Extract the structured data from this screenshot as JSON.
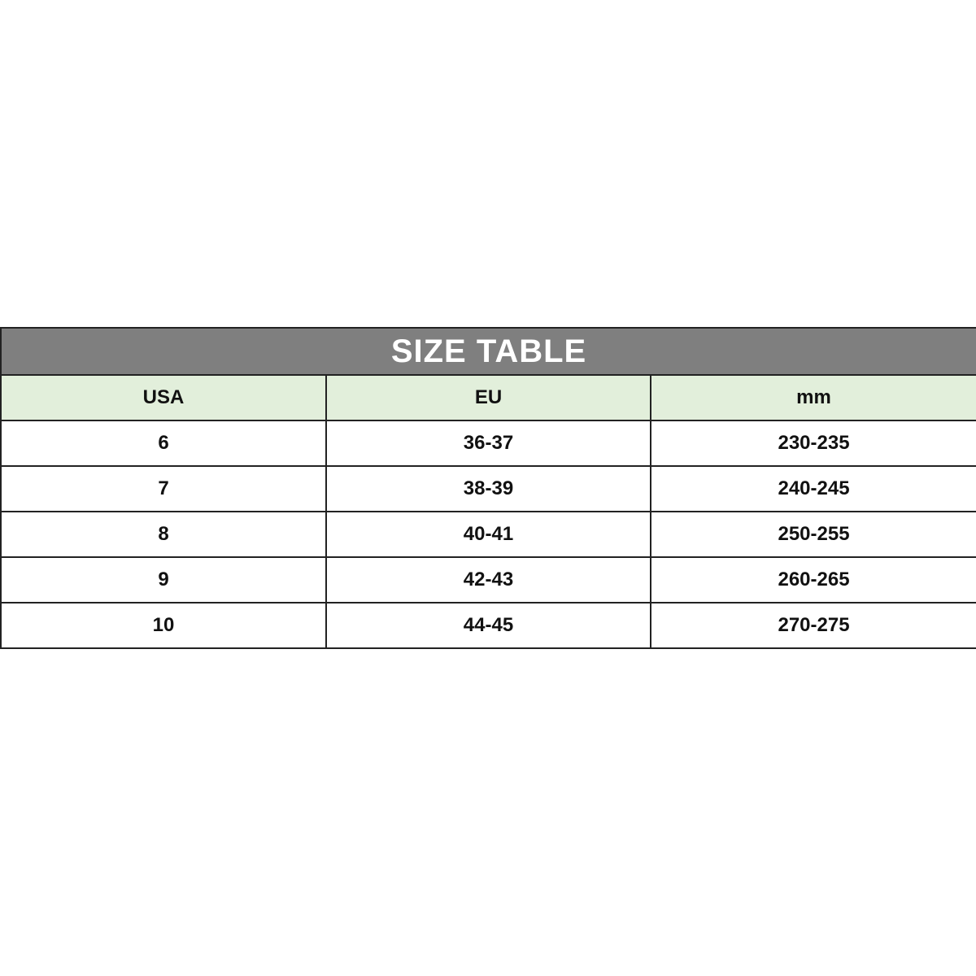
{
  "title": "SIZE TABLE",
  "colors": {
    "title_bg": "#7f7f7f",
    "header_bg": "#e2efdb"
  },
  "columns": [
    "USA",
    "EU",
    "mm"
  ],
  "rows": [
    [
      "6",
      "36-37",
      "230-235"
    ],
    [
      "7",
      "38-39",
      "240-245"
    ],
    [
      "8",
      "40-41",
      "250-255"
    ],
    [
      "9",
      "42-43",
      "260-265"
    ],
    [
      "10",
      "44-45",
      "270-275"
    ]
  ]
}
